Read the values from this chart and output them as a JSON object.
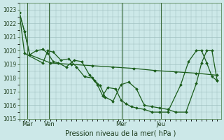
{
  "background_color": "#cce8e8",
  "grid_color": "#99bbbb",
  "line_color": "#1a5c1a",
  "ylim": [
    1015,
    1023.5
  ],
  "yticks": [
    1015,
    1016,
    1017,
    1018,
    1019,
    1020,
    1021,
    1022,
    1023
  ],
  "xlabel": "Pression niveau de la mer( hPa )",
  "day_labels": [
    "Mar",
    "Ven",
    "Mer",
    "Jeu"
  ],
  "figsize": [
    3.2,
    2.0
  ],
  "dpi": 100,
  "series1_x": [
    0,
    8,
    16,
    48,
    80,
    112,
    144,
    176,
    208,
    240,
    272,
    304
  ],
  "series1_y": [
    1022.8,
    1021.4,
    1019.7,
    1019.1,
    1019.0,
    1018.9,
    1018.8,
    1018.7,
    1018.55,
    1018.45,
    1018.35,
    1018.2
  ],
  "series2_x": [
    0,
    8,
    16,
    26,
    36,
    44,
    52,
    60,
    72,
    84,
    96,
    108,
    116,
    124,
    132,
    144,
    156,
    168,
    180,
    192,
    204,
    216,
    228,
    240,
    256,
    272,
    280,
    288,
    296,
    304
  ],
  "series2_y": [
    1022.8,
    1021.4,
    1019.7,
    1020.0,
    1020.1,
    1019.8,
    1019.2,
    1019.1,
    1018.8,
    1019.3,
    1019.2,
    1018.2,
    1017.8,
    1017.45,
    1016.6,
    1016.3,
    1017.5,
    1017.7,
    1017.2,
    1016.0,
    1015.9,
    1015.8,
    1015.7,
    1015.5,
    1015.5,
    1017.6,
    1019.1,
    1020.0,
    1020.0,
    1017.8
  ],
  "series3_x": [
    0,
    8,
    36,
    44,
    52,
    64,
    76,
    88,
    100,
    112,
    120,
    128,
    136,
    148,
    156,
    164,
    172,
    180,
    192,
    204,
    216,
    228,
    248,
    260,
    272,
    280,
    288,
    296,
    304
  ],
  "series3_y": [
    1022.8,
    1019.8,
    1019.1,
    1020.0,
    1019.9,
    1019.3,
    1019.4,
    1018.8,
    1018.1,
    1018.0,
    1017.5,
    1016.7,
    1017.3,
    1017.2,
    1016.4,
    1016.1,
    1015.9,
    1015.8,
    1015.7,
    1015.5,
    1015.5,
    1015.5,
    1017.5,
    1019.2,
    1020.0,
    1020.0,
    1019.1,
    1018.1,
    1017.8
  ]
}
